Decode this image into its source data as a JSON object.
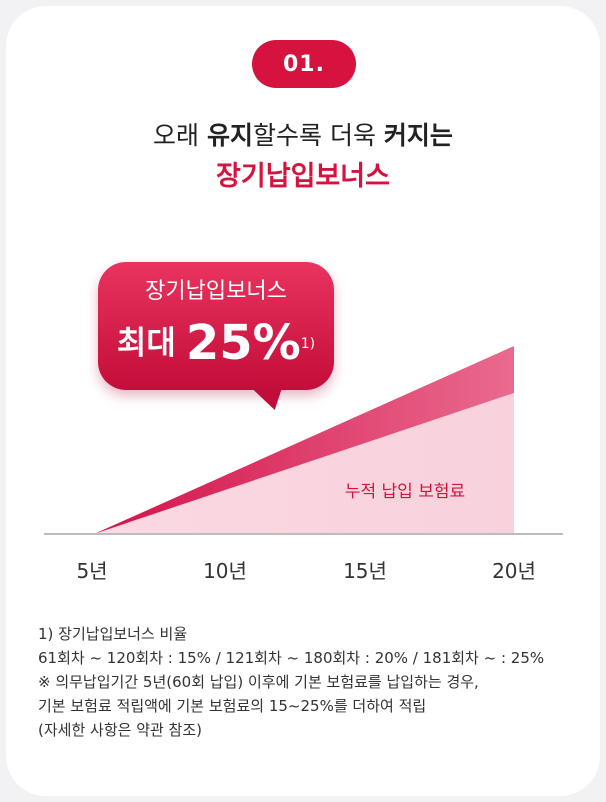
{
  "badge": "01.",
  "headline": {
    "part1": "오래 ",
    "bold1": "유지",
    "part2": "할수록 더욱 ",
    "bold2": "커지는"
  },
  "subheadline": "장기납입보너스",
  "bubble": {
    "title": "장기납입보너스",
    "label": "최대",
    "value": "25%",
    "footnote_mark": "1)"
  },
  "area_label": "누적 납입 보험료",
  "colors": {
    "accent": "#d6133f",
    "area_light": "#fad8e1",
    "area_dark": "#e2356a"
  },
  "chart_data": {
    "type": "area",
    "categories": [
      "5년",
      "10년",
      "15년",
      "20년"
    ],
    "series": [
      {
        "name": "누적 납입 보험료",
        "values": [
          0,
          1,
          2,
          3
        ]
      },
      {
        "name": "장기납입보너스",
        "values": [
          0,
          0.333,
          0.667,
          1
        ]
      }
    ]
  },
  "notes": [
    "1) 장기납입보너스 비율",
    "61회차 ~ 120회차 : 15% / 121회차 ~ 180회차 : 20% / 181회차 ~ : 25%",
    "※ 의무납입기간 5년(60회 납입) 이후에 기본 보험료를 납입하는 경우,",
    "기본 보험료 적립액에 기본 보험료의 15~25%를 더하여 적립",
    "(자세한 사항은 약관 참조)"
  ]
}
